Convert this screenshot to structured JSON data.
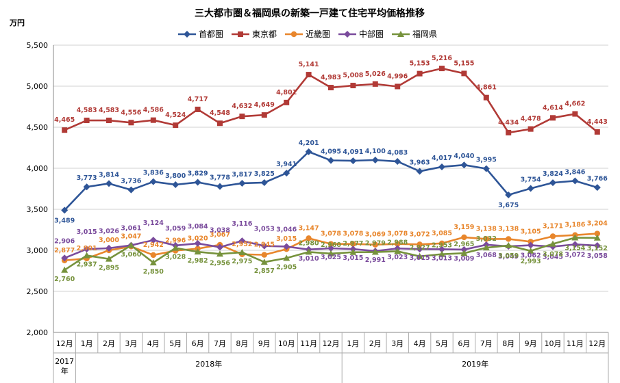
{
  "chart_data": {
    "type": "line",
    "title": "三大都市圏＆福岡県の新築一戸建て住宅平均価格推移",
    "ylabel": "万円",
    "ylim": [
      2000,
      5500
    ],
    "yticks": [
      "2,000",
      "2,500",
      "3,000",
      "3,500",
      "4,000",
      "4,500",
      "5,000",
      "5,500"
    ],
    "grid": true,
    "legend_position": "top",
    "categories": [
      "12月",
      "1月",
      "2月",
      "3月",
      "4月",
      "5月",
      "6月",
      "7月",
      "8月",
      "9月",
      "10月",
      "11月",
      "12月",
      "1月",
      "2月",
      "3月",
      "4月",
      "5月",
      "6月",
      "7月",
      "8月",
      "9月",
      "10月",
      "11月",
      "12月"
    ],
    "year_groups": [
      {
        "label": "2017年",
        "start": 0,
        "end": 0
      },
      {
        "label": "2018年",
        "start": 1,
        "end": 12
      },
      {
        "label": "2019年",
        "start": 13,
        "end": 24
      }
    ],
    "series": [
      {
        "name": "首都圏",
        "color": "#2e5597",
        "marker": "diamond",
        "values": [
          3489,
          3773,
          3814,
          3736,
          3836,
          3800,
          3829,
          3778,
          3817,
          3825,
          3941,
          4201,
          4095,
          4091,
          4100,
          4083,
          3963,
          4017,
          4040,
          3995,
          3675,
          3754,
          3824,
          3846,
          3766
        ],
        "labels": [
          "3,489",
          "3,773",
          "3,814",
          "3,736",
          "3,836",
          "3,800",
          "3,829",
          "3,778",
          "3,817",
          "3,825",
          "3,941",
          "4,201",
          "4,095",
          "4,091",
          "4,100",
          "4,083",
          "3,963",
          "4,017",
          "4,040",
          "3,995",
          "3,675",
          "3,754",
          "3,824",
          "3,846",
          "3,766"
        ]
      },
      {
        "name": "東京都",
        "color": "#b13a36",
        "marker": "square",
        "values": [
          4465,
          4583,
          4583,
          4556,
          4586,
          4524,
          4717,
          4548,
          4632,
          4649,
          4801,
          5141,
          4983,
          5008,
          5026,
          4996,
          5153,
          5216,
          5155,
          4861,
          4434,
          4478,
          4614,
          4662,
          4443
        ],
        "labels": [
          "4,465",
          "4,583",
          "4,583",
          "4,556",
          "4,586",
          "4,524",
          "4,717",
          "4,548",
          "4,632",
          "4,649",
          "4,801",
          "5,141",
          "4,983",
          "5,008",
          "5,026",
          "4,996",
          "5,153",
          "5,216",
          "5,155",
          "4,861",
          "4,434",
          "4,478",
          "4,614",
          "4,662",
          "4,443"
        ]
      },
      {
        "name": "近畿圏",
        "color": "#e8862c",
        "marker": "circle",
        "values": [
          2877,
          2901,
          3000,
          3047,
          2942,
          2996,
          3020,
          3067,
          2952,
          2945,
          3015,
          3147,
          3078,
          3078,
          3069,
          3078,
          3072,
          3085,
          3159,
          3138,
          3138,
          3105,
          3171,
          3186,
          3204
        ],
        "labels": [
          "2,877",
          "2,901",
          "3,000",
          "3,047",
          "2,942",
          "2,996",
          "3,020",
          "3,067",
          "2,952",
          "2,945",
          "3,015",
          "3,147",
          "3,078",
          "3,078",
          "3,069",
          "3,078",
          "3,072",
          "3,085",
          "3,159",
          "3,138",
          "3,138",
          "3,105",
          "3,171",
          "3,186",
          "3,204"
        ]
      },
      {
        "name": "中部圏",
        "color": "#7a4b9c",
        "marker": "diamond",
        "values": [
          2906,
          3015,
          3026,
          3061,
          3124,
          3059,
          3084,
          3038,
          3116,
          3053,
          3046,
          3010,
          3025,
          3015,
          2991,
          3023,
          3015,
          3013,
          3009,
          3068,
          3049,
          3062,
          3045,
          3072,
          3058
        ],
        "labels": [
          "2,906",
          "3,015",
          "3,026",
          "3,061",
          "3,124",
          "3,059",
          "3,084",
          "3,038",
          "3,116",
          "3,053",
          "3,046",
          "3,010",
          "3,025",
          "3,015",
          "2,991",
          "3,023",
          "3,015",
          "3,013",
          "3,009",
          "3,068",
          "3,049",
          "3,062",
          "3,045",
          "3,072",
          "3,058"
        ]
      },
      {
        "name": "福岡県",
        "color": "#76923c",
        "marker": "triangle",
        "values": [
          2760,
          2937,
          2895,
          3060,
          2850,
          3028,
          2982,
          2956,
          2975,
          2857,
          2905,
          2980,
          2960,
          2977,
          2979,
          2988,
          2927,
          2953,
          2965,
          3032,
          3059,
          2993,
          3078,
          3154,
          3152
        ],
        "labels": [
          "2,760",
          "2,937",
          "2,895",
          "3,060",
          "2,850",
          "3,028",
          "2,982",
          "2,956",
          "2,975",
          "2,857",
          "2,905",
          "2,980",
          "2,960",
          "2,977",
          "2,979",
          "2,988",
          "2,927",
          "2,953",
          "2,965",
          "3,032",
          "3,059",
          "2,993",
          "3,078",
          "3,154",
          "3,152"
        ]
      }
    ]
  }
}
